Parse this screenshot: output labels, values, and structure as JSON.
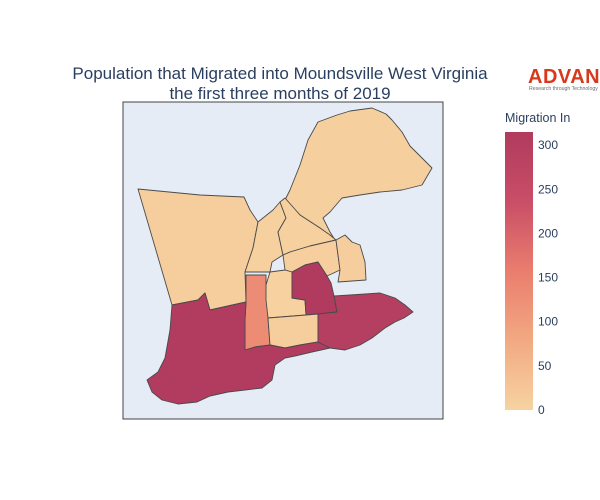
{
  "chart_data": {
    "type": "choropleth",
    "title_lines": [
      "Population that Migrated into Moundsville West Virginia",
      "the first three months of 2019"
    ],
    "colorbar": {
      "title": "Migration In",
      "ticks": [
        0,
        50,
        100,
        150,
        200,
        250,
        300
      ],
      "range": [
        0,
        315
      ],
      "colorscale": [
        "#f7d3a1",
        "#f2a982",
        "#ea7d6e",
        "#c94e67",
        "#b03b5e"
      ]
    },
    "regions": [
      {
        "id": "northeast",
        "value": 8
      },
      {
        "id": "west",
        "value": 10
      },
      {
        "id": "north-central-a",
        "value": 5
      },
      {
        "id": "north-central-b",
        "value": 6
      },
      {
        "id": "north-central-c",
        "value": 7
      },
      {
        "id": "east-small",
        "value": 9
      },
      {
        "id": "central-narrow",
        "value": 4
      },
      {
        "id": "narrow-strip",
        "value": 130
      },
      {
        "id": "center-square",
        "value": 315
      },
      {
        "id": "south-center",
        "value": 12
      },
      {
        "id": "southwest",
        "value": 310
      },
      {
        "id": "southeast",
        "value": 300
      }
    ]
  },
  "logo": {
    "name": "ADVAN",
    "tagline": "Research through Technology"
  }
}
